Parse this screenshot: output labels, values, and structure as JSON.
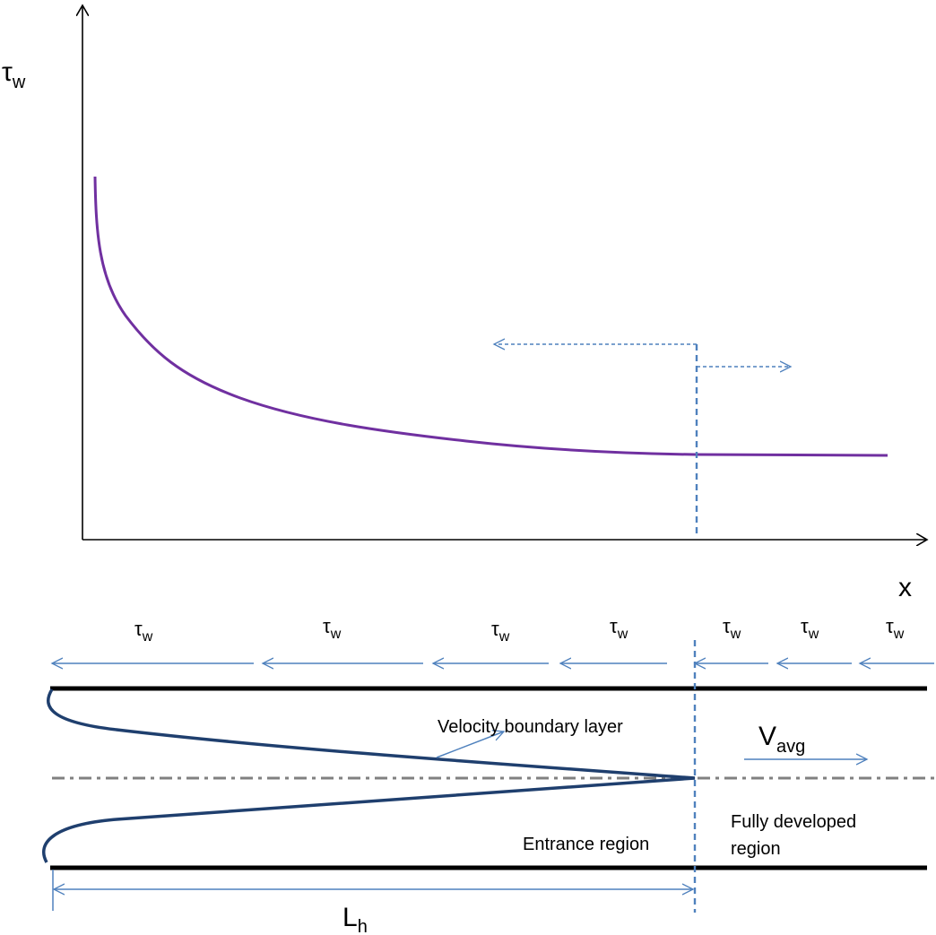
{
  "top_plot": {
    "y_axis_label": {
      "main": "τ",
      "sub": "w"
    },
    "x_axis_label": "x"
  },
  "shear_labels": [
    {
      "main": "τ",
      "sub": "w"
    },
    {
      "main": "τ",
      "sub": "w"
    },
    {
      "main": "τ",
      "sub": "w"
    },
    {
      "main": "τ",
      "sub": "w"
    },
    {
      "main": "τ",
      "sub": "w"
    },
    {
      "main": "τ",
      "sub": "w"
    },
    {
      "main": "τ",
      "sub": "w"
    }
  ],
  "pipe": {
    "boundary_layer_label": "Velocity boundary layer",
    "velocity_label": {
      "main": "V",
      "sub": "avg"
    },
    "entrance_label": "Entrance region",
    "fully_developed_line1": "Fully developed",
    "fully_developed_line2": "region",
    "length_label": {
      "main": "L",
      "sub": "h"
    }
  },
  "colors": {
    "curve": "#7030a0",
    "arrow": "#4f81bd",
    "profile": "#1f3f6e",
    "centerline": "#808080",
    "wall": "#000000"
  }
}
